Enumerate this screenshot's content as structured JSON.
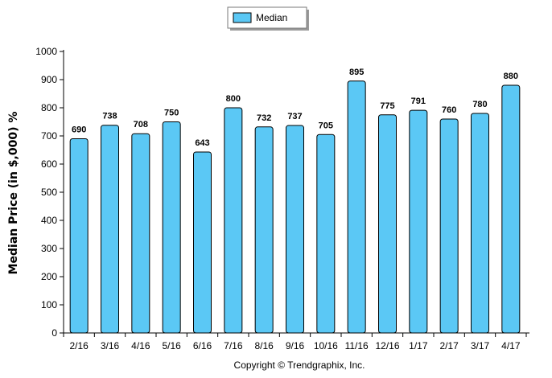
{
  "chart_data": {
    "type": "bar",
    "categories": [
      "2/16",
      "3/16",
      "4/16",
      "5/16",
      "6/16",
      "7/16",
      "8/16",
      "9/16",
      "10/16",
      "11/16",
      "12/16",
      "1/17",
      "2/17",
      "3/17",
      "4/17"
    ],
    "series": [
      {
        "name": "Median",
        "values": [
          690,
          738,
          708,
          750,
          643,
          800,
          732,
          737,
          705,
          895,
          775,
          791,
          760,
          780,
          880
        ]
      }
    ],
    "ylabel": "Median Price (in $,000) %",
    "ylim": [
      0,
      1000
    ],
    "yticks": [
      0,
      100,
      200,
      300,
      400,
      500,
      600,
      700,
      800,
      900,
      1000
    ],
    "legend_position": "top-center",
    "grid": false,
    "colors": {
      "bar_fill": "#5bc8f5",
      "bar_stroke": "#000000",
      "axis": "#000000"
    }
  },
  "footer": {
    "copyright": "Copyright © Trendgraphix, Inc."
  }
}
